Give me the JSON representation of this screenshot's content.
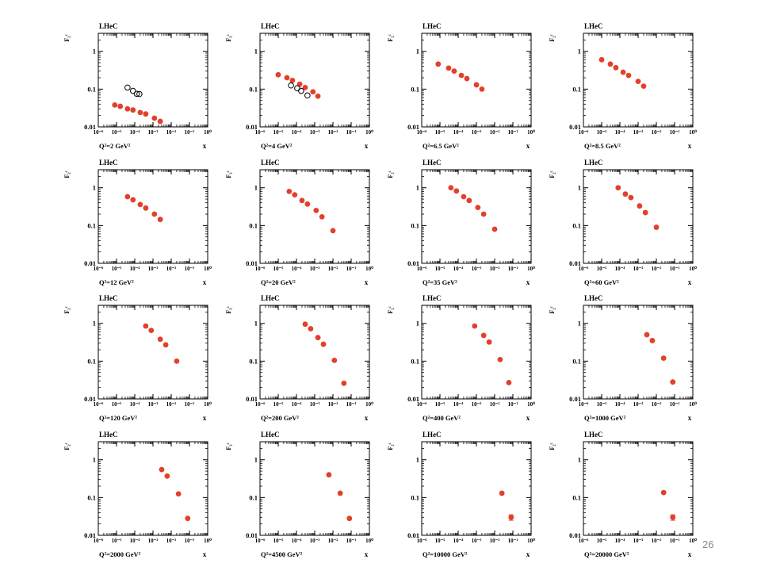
{
  "slide": {
    "page_number": "26"
  },
  "style": {
    "point_color": "#e2402a",
    "open_marker_color": "#000000",
    "axis_color": "#000000"
  },
  "panel_common": {
    "label": "LHeC",
    "ylabel": "F₂ᶜ",
    "xlabel": "x",
    "xscale": "log",
    "yscale": "log",
    "xlim": [
      1e-06,
      1
    ],
    "ylim": [
      0.01,
      3
    ],
    "y_tick_labels": [
      "0.01",
      "0.1",
      "1"
    ],
    "x_tick_labels": [
      "10⁻⁶",
      "10⁻⁵",
      "10⁻⁴",
      "10⁻³",
      "10⁻²",
      "10⁻¹",
      "10⁰"
    ]
  },
  "chart_data": [
    {
      "type": "scatter",
      "q2_label": "Q²=2 GeV²",
      "series": [
        {
          "marker": "filled",
          "x": [
            8e-06,
            1.6e-05,
            4e-05,
            8e-05,
            0.0002,
            0.0004,
            0.0012,
            0.0025
          ],
          "y": [
            0.038,
            0.035,
            0.03,
            0.028,
            0.024,
            0.022,
            0.017,
            0.014
          ]
        },
        {
          "marker": "open",
          "x": [
            4e-05,
            8e-05,
            0.00013,
            0.00018
          ],
          "y": [
            0.11,
            0.09,
            0.075,
            0.074
          ]
        }
      ]
    },
    {
      "type": "scatter",
      "q2_label": "Q²=4 GeV²",
      "series": [
        {
          "marker": "filled",
          "x": [
            1e-05,
            3e-05,
            6e-05,
            0.00015,
            0.0003,
            0.0008,
            0.0015
          ],
          "y": [
            0.24,
            0.2,
            0.17,
            0.135,
            0.11,
            0.085,
            0.065
          ]
        },
        {
          "marker": "open",
          "x": [
            5e-05,
            0.00011,
            0.00018,
            0.0004
          ],
          "y": [
            0.125,
            0.105,
            0.09,
            0.068
          ]
        }
      ]
    },
    {
      "type": "scatter",
      "q2_label": "Q²=6.5 GeV²",
      "series": [
        {
          "marker": "filled",
          "x": [
            8e-06,
            3e-05,
            6e-05,
            0.00015,
            0.0003,
            0.001,
            0.002
          ],
          "y": [
            0.46,
            0.36,
            0.3,
            0.23,
            0.19,
            0.13,
            0.1
          ]
        }
      ]
    },
    {
      "type": "scatter",
      "q2_label": "Q²=8.5 GeV²",
      "series": [
        {
          "marker": "filled",
          "x": [
            1e-05,
            3e-05,
            6e-05,
            0.00015,
            0.0003,
            0.001,
            0.002
          ],
          "y": [
            0.6,
            0.46,
            0.37,
            0.28,
            0.23,
            0.16,
            0.12
          ]
        }
      ]
    },
    {
      "type": "scatter",
      "q2_label": "Q²=12 GeV²",
      "series": [
        {
          "marker": "filled",
          "x": [
            4e-05,
            8e-05,
            0.0002,
            0.0004,
            0.0012,
            0.0025
          ],
          "y": [
            0.58,
            0.48,
            0.36,
            0.29,
            0.2,
            0.145
          ]
        }
      ]
    },
    {
      "type": "scatter",
      "q2_label": "Q²=20 GeV²",
      "series": [
        {
          "marker": "filled",
          "x": [
            4e-05,
            8e-05,
            0.0002,
            0.0004,
            0.0012,
            0.0025,
            0.01
          ],
          "y": [
            0.8,
            0.65,
            0.46,
            0.37,
            0.25,
            0.17,
            0.073
          ]
        }
      ]
    },
    {
      "type": "scatter",
      "q2_label": "Q²=35 GeV²",
      "series": [
        {
          "marker": "filled",
          "x": [
            4e-05,
            8e-05,
            0.0002,
            0.0004,
            0.0012,
            0.0025,
            0.01
          ],
          "y": [
            1.0,
            0.82,
            0.58,
            0.46,
            0.3,
            0.2,
            0.08
          ]
        }
      ]
    },
    {
      "type": "scatter",
      "q2_label": "Q²=60 GeV²",
      "series": [
        {
          "marker": "filled",
          "x": [
            8e-05,
            0.0002,
            0.0004,
            0.0012,
            0.0025,
            0.01
          ],
          "y": [
            1.0,
            0.68,
            0.55,
            0.33,
            0.22,
            0.09
          ]
        }
      ]
    },
    {
      "type": "scatter",
      "q2_label": "Q²=120 GeV²",
      "series": [
        {
          "marker": "filled",
          "x": [
            0.0004,
            0.0008,
            0.0025,
            0.005,
            0.02
          ],
          "y": [
            0.85,
            0.65,
            0.38,
            0.27,
            0.1
          ]
        }
      ]
    },
    {
      "type": "scatter",
      "q2_label": "Q²=200 GeV²",
      "series": [
        {
          "marker": "filled",
          "x": [
            0.0003,
            0.0006,
            0.0015,
            0.003,
            0.012,
            0.04
          ],
          "y": [
            0.95,
            0.72,
            0.42,
            0.28,
            0.105,
            0.026
          ]
        }
      ]
    },
    {
      "type": "scatter",
      "q2_label": "Q²=400 GeV²",
      "series": [
        {
          "marker": "filled",
          "x": [
            0.0008,
            0.0025,
            0.005,
            0.02,
            0.06
          ],
          "y": [
            0.85,
            0.48,
            0.32,
            0.11,
            0.027
          ]
        }
      ]
    },
    {
      "type": "scatter",
      "q2_label": "Q²=1000 GeV²",
      "series": [
        {
          "marker": "filled",
          "x": [
            0.003,
            0.006,
            0.025,
            0.08
          ],
          "y": [
            0.5,
            0.35,
            0.12,
            0.028
          ]
        }
      ]
    },
    {
      "type": "scatter",
      "q2_label": "Q²=2000 GeV²",
      "series": [
        {
          "marker": "filled",
          "x": [
            0.003,
            0.006,
            0.025,
            0.08
          ],
          "y": [
            0.55,
            0.37,
            0.125,
            0.028
          ]
        }
      ]
    },
    {
      "type": "scatter",
      "q2_label": "Q²=4500 GeV²",
      "series": [
        {
          "marker": "filled",
          "x": [
            0.006,
            0.025,
            0.08
          ],
          "y": [
            0.4,
            0.13,
            0.028
          ]
        }
      ]
    },
    {
      "type": "scatter",
      "q2_label": "Q²=10000 GeV²",
      "series": [
        {
          "marker": "filled",
          "x": [
            0.025,
            0.08
          ],
          "y": [
            0.13,
            0.03
          ],
          "yerr": [
            0,
            0.005
          ]
        }
      ]
    },
    {
      "type": "scatter",
      "q2_label": "Q²=20000 GeV²",
      "series": [
        {
          "marker": "filled",
          "x": [
            0.025,
            0.08
          ],
          "y": [
            0.135,
            0.03
          ],
          "yerr": [
            0,
            0.005
          ]
        }
      ]
    }
  ]
}
